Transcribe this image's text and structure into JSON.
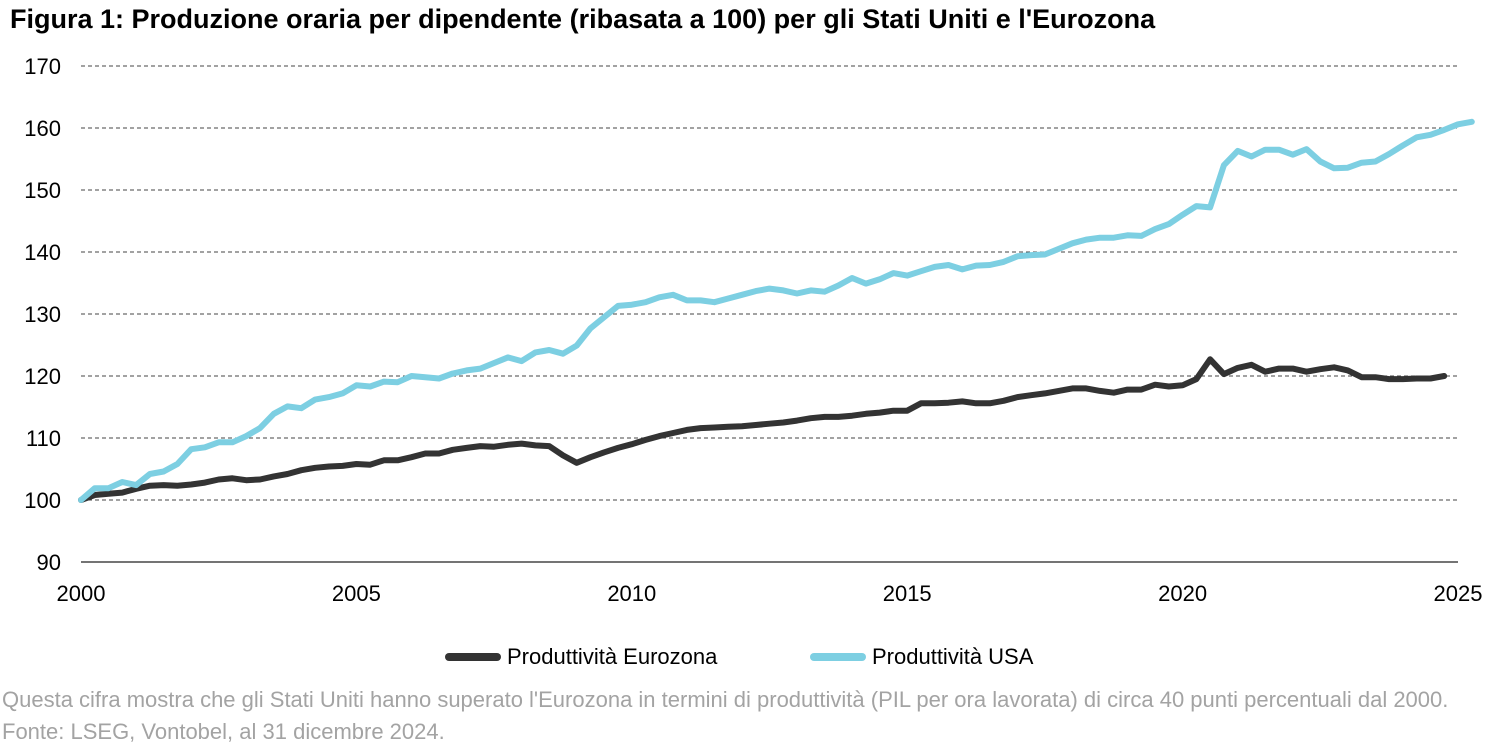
{
  "chart_data": {
    "type": "line",
    "title": "Figura 1: Produzione oraria per dipendente (ribasata a 100) per gli Stati Uniti e l'Eurozona",
    "xlabel": "",
    "ylabel": "",
    "xlim": [
      2000,
      2025
    ],
    "ylim": [
      90,
      170
    ],
    "x_ticks": [
      2000,
      2005,
      2010,
      2015,
      2020,
      2025
    ],
    "y_ticks": [
      90,
      100,
      110,
      120,
      130,
      140,
      150,
      160,
      170
    ],
    "grid": "horizontal dashed",
    "legend_position": "bottom",
    "series": [
      {
        "name": "Produttività Eurozona",
        "color": "#333333",
        "points": [
          [
            2000.0,
            100.0
          ],
          [
            2000.25,
            100.8
          ],
          [
            2000.5,
            101.0
          ],
          [
            2000.75,
            101.2
          ],
          [
            2001.0,
            101.8
          ],
          [
            2001.25,
            102.3
          ],
          [
            2001.5,
            102.4
          ],
          [
            2001.75,
            102.3
          ],
          [
            2002.0,
            102.5
          ],
          [
            2002.25,
            102.8
          ],
          [
            2002.5,
            103.3
          ],
          [
            2002.75,
            103.5
          ],
          [
            2003.0,
            103.2
          ],
          [
            2003.25,
            103.3
          ],
          [
            2003.5,
            103.8
          ],
          [
            2003.75,
            104.2
          ],
          [
            2004.0,
            104.8
          ],
          [
            2004.25,
            105.2
          ],
          [
            2004.5,
            105.4
          ],
          [
            2004.75,
            105.5
          ],
          [
            2005.0,
            105.8
          ],
          [
            2005.25,
            105.7
          ],
          [
            2005.5,
            106.4
          ],
          [
            2005.75,
            106.4
          ],
          [
            2006.0,
            106.9
          ],
          [
            2006.25,
            107.5
          ],
          [
            2006.5,
            107.5
          ],
          [
            2006.75,
            108.1
          ],
          [
            2007.0,
            108.4
          ],
          [
            2007.25,
            108.7
          ],
          [
            2007.5,
            108.6
          ],
          [
            2007.75,
            108.9
          ],
          [
            2008.0,
            109.1
          ],
          [
            2008.25,
            108.8
          ],
          [
            2008.5,
            108.7
          ],
          [
            2008.75,
            107.2
          ],
          [
            2009.0,
            106.0
          ],
          [
            2009.25,
            106.9
          ],
          [
            2009.5,
            107.7
          ],
          [
            2009.75,
            108.4
          ],
          [
            2010.0,
            109.0
          ],
          [
            2010.25,
            109.7
          ],
          [
            2010.5,
            110.3
          ],
          [
            2010.75,
            110.8
          ],
          [
            2011.0,
            111.3
          ],
          [
            2011.25,
            111.6
          ],
          [
            2011.5,
            111.7
          ],
          [
            2011.75,
            111.8
          ],
          [
            2012.0,
            111.9
          ],
          [
            2012.25,
            112.1
          ],
          [
            2012.5,
            112.3
          ],
          [
            2012.75,
            112.5
          ],
          [
            2013.0,
            112.8
          ],
          [
            2013.25,
            113.2
          ],
          [
            2013.5,
            113.4
          ],
          [
            2013.75,
            113.4
          ],
          [
            2014.0,
            113.6
          ],
          [
            2014.25,
            113.9
          ],
          [
            2014.5,
            114.1
          ],
          [
            2014.75,
            114.4
          ],
          [
            2015.0,
            114.4
          ],
          [
            2015.25,
            115.6
          ],
          [
            2015.5,
            115.6
          ],
          [
            2015.75,
            115.7
          ],
          [
            2016.0,
            115.9
          ],
          [
            2016.25,
            115.6
          ],
          [
            2016.5,
            115.6
          ],
          [
            2016.75,
            116.0
          ],
          [
            2017.0,
            116.6
          ],
          [
            2017.25,
            116.9
          ],
          [
            2017.5,
            117.2
          ],
          [
            2017.75,
            117.6
          ],
          [
            2018.0,
            118.0
          ],
          [
            2018.25,
            118.0
          ],
          [
            2018.5,
            117.6
          ],
          [
            2018.75,
            117.3
          ],
          [
            2019.0,
            117.8
          ],
          [
            2019.25,
            117.8
          ],
          [
            2019.5,
            118.6
          ],
          [
            2019.75,
            118.3
          ],
          [
            2020.0,
            118.5
          ],
          [
            2020.25,
            119.5
          ],
          [
            2020.5,
            122.7
          ],
          [
            2020.75,
            120.3
          ],
          [
            2021.0,
            121.3
          ],
          [
            2021.25,
            121.8
          ],
          [
            2021.5,
            120.7
          ],
          [
            2021.75,
            121.2
          ],
          [
            2022.0,
            121.2
          ],
          [
            2022.25,
            120.7
          ],
          [
            2022.5,
            121.1
          ],
          [
            2022.75,
            121.4
          ],
          [
            2023.0,
            120.9
          ],
          [
            2023.25,
            119.8
          ],
          [
            2023.5,
            119.8
          ],
          [
            2023.75,
            119.5
          ],
          [
            2024.0,
            119.5
          ],
          [
            2024.25,
            119.6
          ],
          [
            2024.5,
            119.6
          ],
          [
            2024.75,
            120.0
          ]
        ]
      },
      {
        "name": "Produttività USA",
        "color": "#7dcfe2",
        "points": [
          [
            2000.0,
            100.0
          ],
          [
            2000.25,
            101.9
          ],
          [
            2000.5,
            101.9
          ],
          [
            2000.75,
            102.9
          ],
          [
            2001.0,
            102.4
          ],
          [
            2001.25,
            104.2
          ],
          [
            2001.5,
            104.6
          ],
          [
            2001.75,
            105.8
          ],
          [
            2002.0,
            108.2
          ],
          [
            2002.25,
            108.5
          ],
          [
            2002.5,
            109.3
          ],
          [
            2002.75,
            109.3
          ],
          [
            2003.0,
            110.3
          ],
          [
            2003.25,
            111.6
          ],
          [
            2003.5,
            113.9
          ],
          [
            2003.75,
            115.1
          ],
          [
            2004.0,
            114.8
          ],
          [
            2004.25,
            116.2
          ],
          [
            2004.5,
            116.6
          ],
          [
            2004.75,
            117.2
          ],
          [
            2005.0,
            118.5
          ],
          [
            2005.25,
            118.3
          ],
          [
            2005.5,
            119.1
          ],
          [
            2005.75,
            119.0
          ],
          [
            2006.0,
            120.0
          ],
          [
            2006.25,
            119.8
          ],
          [
            2006.5,
            119.6
          ],
          [
            2006.75,
            120.4
          ],
          [
            2007.0,
            120.9
          ],
          [
            2007.25,
            121.2
          ],
          [
            2007.5,
            122.1
          ],
          [
            2007.75,
            123.0
          ],
          [
            2008.0,
            122.4
          ],
          [
            2008.25,
            123.8
          ],
          [
            2008.5,
            124.2
          ],
          [
            2008.75,
            123.6
          ],
          [
            2009.0,
            124.9
          ],
          [
            2009.25,
            127.7
          ],
          [
            2009.5,
            129.5
          ],
          [
            2009.75,
            131.3
          ],
          [
            2010.0,
            131.5
          ],
          [
            2010.25,
            131.9
          ],
          [
            2010.5,
            132.7
          ],
          [
            2010.75,
            133.1
          ],
          [
            2011.0,
            132.2
          ],
          [
            2011.25,
            132.2
          ],
          [
            2011.5,
            131.9
          ],
          [
            2011.75,
            132.5
          ],
          [
            2012.0,
            133.1
          ],
          [
            2012.25,
            133.7
          ],
          [
            2012.5,
            134.1
          ],
          [
            2012.75,
            133.8
          ],
          [
            2013.0,
            133.3
          ],
          [
            2013.25,
            133.8
          ],
          [
            2013.5,
            133.6
          ],
          [
            2013.75,
            134.6
          ],
          [
            2014.0,
            135.8
          ],
          [
            2014.25,
            134.9
          ],
          [
            2014.5,
            135.6
          ],
          [
            2014.75,
            136.6
          ],
          [
            2015.0,
            136.2
          ],
          [
            2015.25,
            136.9
          ],
          [
            2015.5,
            137.6
          ],
          [
            2015.75,
            137.9
          ],
          [
            2016.0,
            137.2
          ],
          [
            2016.25,
            137.8
          ],
          [
            2016.5,
            137.9
          ],
          [
            2016.75,
            138.4
          ],
          [
            2017.0,
            139.3
          ],
          [
            2017.25,
            139.5
          ],
          [
            2017.5,
            139.6
          ],
          [
            2017.75,
            140.5
          ],
          [
            2018.0,
            141.4
          ],
          [
            2018.25,
            142.0
          ],
          [
            2018.5,
            142.3
          ],
          [
            2018.75,
            142.3
          ],
          [
            2019.0,
            142.7
          ],
          [
            2019.25,
            142.6
          ],
          [
            2019.5,
            143.7
          ],
          [
            2019.75,
            144.5
          ],
          [
            2020.0,
            146.0
          ],
          [
            2020.25,
            147.4
          ],
          [
            2020.5,
            147.2
          ],
          [
            2020.75,
            154.0
          ],
          [
            2021.0,
            156.3
          ],
          [
            2021.25,
            155.4
          ],
          [
            2021.5,
            156.5
          ],
          [
            2021.75,
            156.5
          ],
          [
            2022.0,
            155.7
          ],
          [
            2022.25,
            156.6
          ],
          [
            2022.5,
            154.6
          ],
          [
            2022.75,
            153.5
          ],
          [
            2023.0,
            153.6
          ],
          [
            2023.25,
            154.4
          ],
          [
            2023.5,
            154.6
          ],
          [
            2023.75,
            155.8
          ],
          [
            2024.0,
            157.2
          ],
          [
            2024.25,
            158.5
          ],
          [
            2024.5,
            158.9
          ],
          [
            2024.75,
            159.7
          ],
          [
            2025.0,
            160.6
          ],
          [
            2025.25,
            161.0
          ]
        ]
      }
    ]
  },
  "note": "Questa cifra mostra che gli Stati Uniti hanno superato l'Eurozona in termini di produttività (PIL per ora lavorata) di circa 40 punti percentuali dal 2000. Fonte: LSEG, Vontobel, al 31 dicembre 2024."
}
